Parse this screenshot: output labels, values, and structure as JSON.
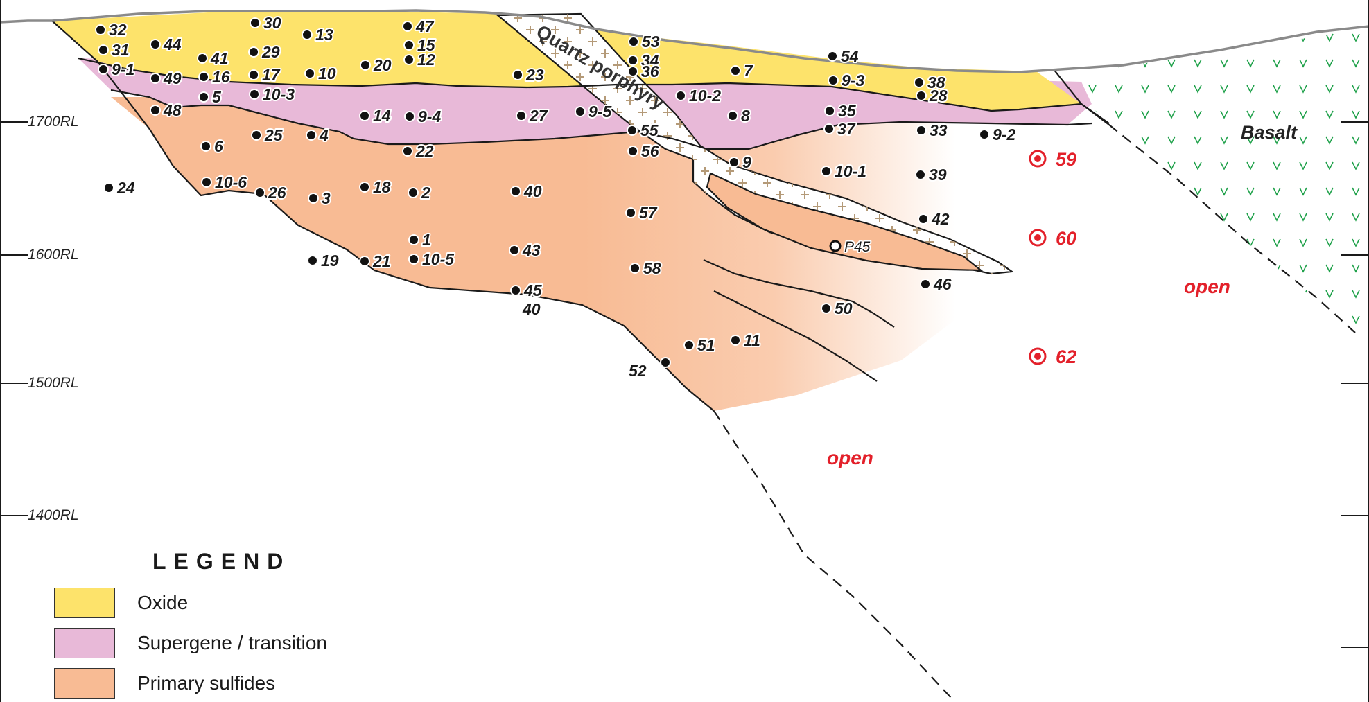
{
  "colors": {
    "oxide": "#fde36b",
    "supergene": "#e8b9d8",
    "primary": "#f8bb94",
    "porphyry_cross": "#b49a78",
    "basalt_v": "#1fa14a",
    "planned": "#e3202a",
    "topography": "#8a8a8a"
  },
  "elevation_labels": [
    "1700RL",
    "1600RL",
    "1500RL",
    "1400RL"
  ],
  "units": {
    "quartz_porphyry": "Quartz porphyry",
    "basalt": "Basalt"
  },
  "open_labels": [
    "open",
    "open"
  ],
  "legend": {
    "title": "LEGEND",
    "items": [
      {
        "key": "oxide",
        "label": "Oxide"
      },
      {
        "key": "supergene",
        "label": "Supergene / transition"
      },
      {
        "key": "primary",
        "label": "Primary sulfides"
      }
    ]
  },
  "drillholes": [
    "32",
    "31",
    "9-1",
    "44",
    "41",
    "49",
    "16",
    "5",
    "30",
    "29",
    "17",
    "10-3",
    "13",
    "10",
    "20",
    "47",
    "15",
    "12",
    "48",
    "6",
    "25",
    "4",
    "14",
    "9-4",
    "22",
    "24",
    "10-6",
    "26",
    "3",
    "18",
    "2",
    "23",
    "27",
    "9-5",
    "53",
    "34",
    "36",
    "55",
    "56",
    "7",
    "10-2",
    "8",
    "9",
    "54",
    "9-3",
    "35",
    "37",
    "10-1",
    "38",
    "28",
    "33",
    "9-2",
    "39",
    "40",
    "57",
    "42",
    "1",
    "19",
    "21",
    "10-5",
    "43",
    "45",
    "58",
    "46",
    "50",
    "51",
    "11",
    "52"
  ],
  "hole_40_lower": "40",
  "pit_hole": "P45",
  "planned_holes": [
    "59",
    "60",
    "62"
  ]
}
